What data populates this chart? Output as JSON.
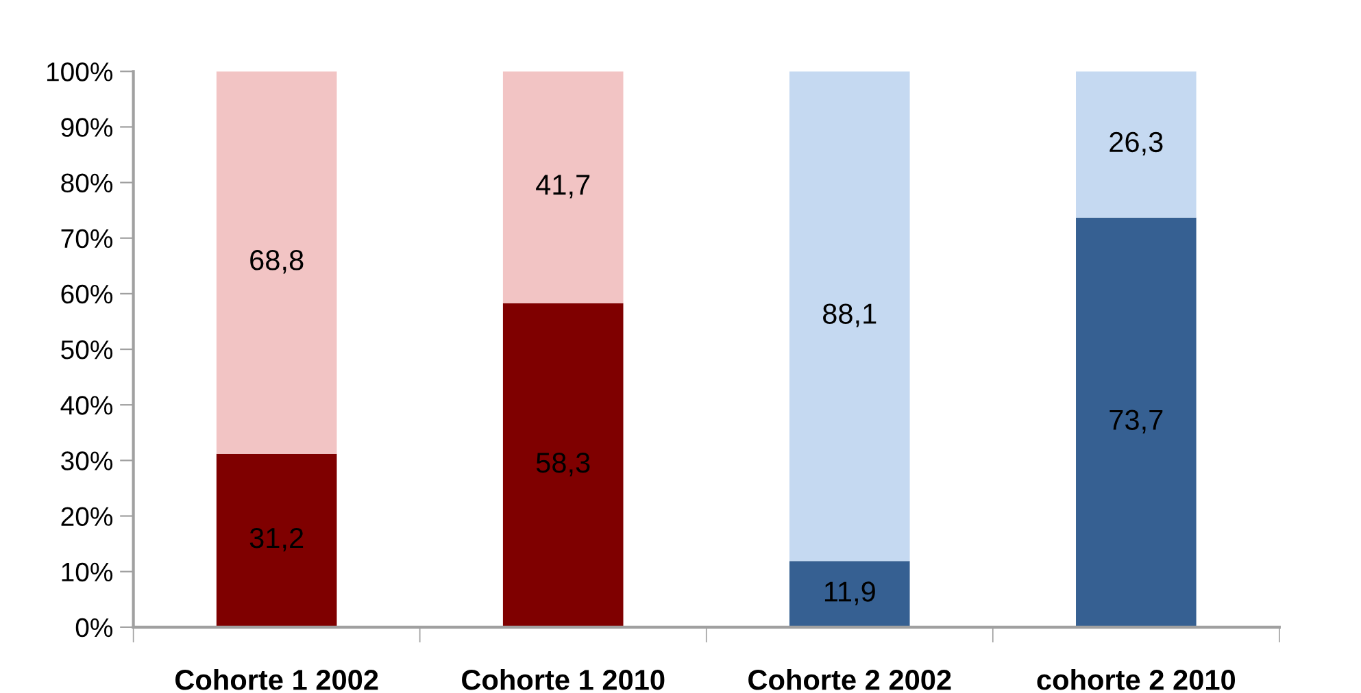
{
  "chart_data": {
    "type": "bar",
    "stacked": true,
    "categories": [
      "Cohorte 1 2002",
      "Cohorte 1 2010",
      "Cohorte 2 2002",
      "cohorte 2 2010"
    ],
    "series": [
      {
        "colors": [
          "#7f0000",
          "#7f0000",
          "#366092",
          "#366092"
        ],
        "values": [
          31.2,
          58.3,
          11.9,
          73.7
        ],
        "value_labels": [
          "31,2",
          "58,3",
          "11,9",
          "73,7"
        ]
      },
      {
        "colors": [
          "#f2c4c4",
          "#f2c4c4",
          "#c5d9f1",
          "#c5d9f1"
        ],
        "values": [
          68.8,
          41.7,
          88.1,
          26.3
        ],
        "value_labels": [
          "68,8",
          "41,7",
          "88,1",
          "26,3"
        ]
      }
    ],
    "ylim": [
      0,
      100
    ],
    "yticks": [
      {
        "value": 0,
        "label": "0%"
      },
      {
        "value": 10,
        "label": "10%"
      },
      {
        "value": 20,
        "label": "20%"
      },
      {
        "value": 30,
        "label": "30%"
      },
      {
        "value": 40,
        "label": "40%"
      },
      {
        "value": 50,
        "label": "50%"
      },
      {
        "value": 60,
        "label": "60%"
      },
      {
        "value": 70,
        "label": "70%"
      },
      {
        "value": 80,
        "label": "80%"
      },
      {
        "value": 90,
        "label": "90%"
      },
      {
        "value": 100,
        "label": "100%"
      }
    ]
  }
}
